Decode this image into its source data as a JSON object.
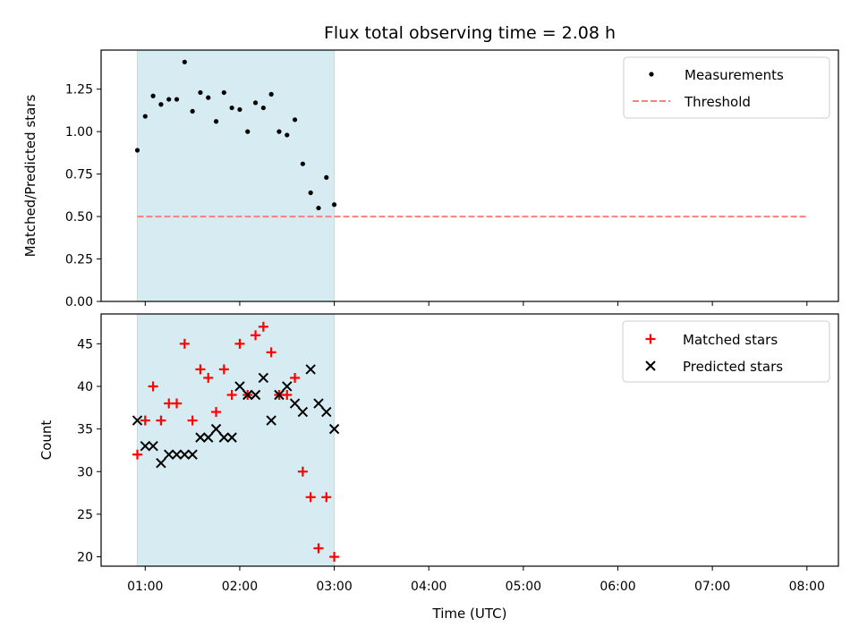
{
  "chart_data": [
    {
      "type": "scatter",
      "title": "Flux total observing time = 2.08 h",
      "xlabel": "",
      "ylabel": "Matched/Predicted stars",
      "ylim": [
        0,
        1.48
      ],
      "yticks": [
        "0.00",
        "0.25",
        "0.50",
        "0.75",
        "1.00",
        "1.25"
      ],
      "legend_position": "top-right",
      "shaded_interval": {
        "start": "00:55",
        "end": "03:00",
        "color": "#add8e6"
      },
      "threshold": {
        "name": "Threshold",
        "value": 0.5,
        "color": "#ff7f7f",
        "x_start": "00:55",
        "x_end": "08:00"
      },
      "series": [
        {
          "name": "Measurements",
          "color": "#000000",
          "marker": "dot",
          "x": [
            "00:55",
            "01:00",
            "01:05",
            "01:10",
            "01:15",
            "01:20",
            "01:25",
            "01:30",
            "01:35",
            "01:40",
            "01:45",
            "01:50",
            "01:55",
            "02:00",
            "02:05",
            "02:10",
            "02:15",
            "02:20",
            "02:25",
            "02:30",
            "02:35",
            "02:40",
            "02:45",
            "02:50",
            "02:55",
            "03:00"
          ],
          "y": [
            0.89,
            1.09,
            1.21,
            1.16,
            1.19,
            1.19,
            1.41,
            1.12,
            1.23,
            1.2,
            1.06,
            1.23,
            1.14,
            1.13,
            1.0,
            1.17,
            1.14,
            1.22,
            1.0,
            0.98,
            1.07,
            0.81,
            0.64,
            0.55,
            0.73,
            0.57
          ]
        }
      ]
    },
    {
      "type": "scatter",
      "title": "",
      "xlabel": "Time (UTC)",
      "ylabel": "Count",
      "ylim": [
        18.9,
        48.5
      ],
      "yticks": [
        "20",
        "25",
        "30",
        "35",
        "40",
        "45"
      ],
      "xticks": [
        "01:00",
        "02:00",
        "03:00",
        "04:00",
        "05:00",
        "06:00",
        "07:00",
        "08:00"
      ],
      "xlim": [
        "00:32",
        "08:20"
      ],
      "legend_position": "top-right",
      "shaded_interval": {
        "start": "00:55",
        "end": "03:00",
        "color": "#add8e6"
      },
      "series": [
        {
          "name": "Matched stars",
          "color": "#ff0000",
          "marker": "plus",
          "x": [
            "00:55",
            "01:00",
            "01:05",
            "01:10",
            "01:15",
            "01:20",
            "01:25",
            "01:30",
            "01:35",
            "01:40",
            "01:45",
            "01:50",
            "01:55",
            "02:00",
            "02:05",
            "02:10",
            "02:15",
            "02:20",
            "02:25",
            "02:30",
            "02:35",
            "02:40",
            "02:45",
            "02:50",
            "02:55",
            "03:00"
          ],
          "y": [
            32,
            36,
            40,
            36,
            38,
            38,
            45,
            36,
            42,
            41,
            37,
            42,
            39,
            45,
            39,
            46,
            47,
            44,
            39,
            39,
            41,
            30,
            27,
            21,
            27,
            20
          ]
        },
        {
          "name": "Predicted stars",
          "color": "#000000",
          "marker": "x",
          "x": [
            "00:55",
            "01:00",
            "01:05",
            "01:10",
            "01:15",
            "01:20",
            "01:25",
            "01:30",
            "01:35",
            "01:40",
            "01:45",
            "01:50",
            "01:55",
            "02:00",
            "02:05",
            "02:10",
            "02:15",
            "02:20",
            "02:25",
            "02:30",
            "02:35",
            "02:40",
            "02:45",
            "02:50",
            "02:55",
            "03:00"
          ],
          "y": [
            36,
            33,
            33,
            31,
            32,
            32,
            32,
            32,
            34,
            34,
            35,
            34,
            34,
            40,
            39,
            39,
            41,
            36,
            39,
            40,
            38,
            37,
            42,
            38,
            37,
            35
          ]
        }
      ]
    }
  ]
}
